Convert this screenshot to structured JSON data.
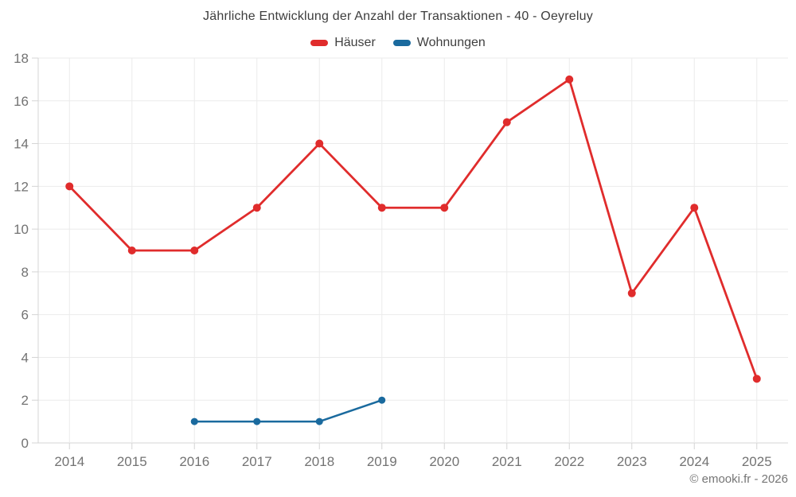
{
  "title": "Jährliche Entwicklung der Anzahl der Transaktionen - 40 - Oeyreluy",
  "legend": {
    "items": [
      {
        "label": "Häuser",
        "color": "#e02c2c"
      },
      {
        "label": "Wohnungen",
        "color": "#1a6a9e"
      }
    ]
  },
  "footer": {
    "copyright": "© emooki.fr - 2026"
  },
  "style": {
    "grid_color": "#ebebeb",
    "axis_color": "#d4d4d4",
    "tick_label_color": "#737373"
  },
  "chart_data": {
    "type": "line",
    "title": "Jährliche Entwicklung der Anzahl der Transaktionen - 40 - Oeyreluy",
    "categories": [
      "2014",
      "2015",
      "2016",
      "2017",
      "2018",
      "2019",
      "2020",
      "2021",
      "2022",
      "2023",
      "2024",
      "2025"
    ],
    "series": [
      {
        "name": "Häuser",
        "color": "#e02c2c",
        "point_radius": 5,
        "line_width": 2.8,
        "values": [
          12,
          9,
          9,
          11,
          14,
          11,
          11,
          15,
          17,
          7,
          11,
          3
        ]
      },
      {
        "name": "Wohnungen",
        "color": "#1a6a9e",
        "point_radius": 4.5,
        "line_width": 2.5,
        "values": [
          null,
          null,
          1,
          1,
          1,
          2,
          null,
          null,
          null,
          null,
          null,
          null
        ]
      }
    ],
    "xlabel": "",
    "ylabel": "",
    "ylim": [
      0,
      18
    ],
    "ytick_step": 2,
    "grid": true,
    "legend_position": "top"
  }
}
